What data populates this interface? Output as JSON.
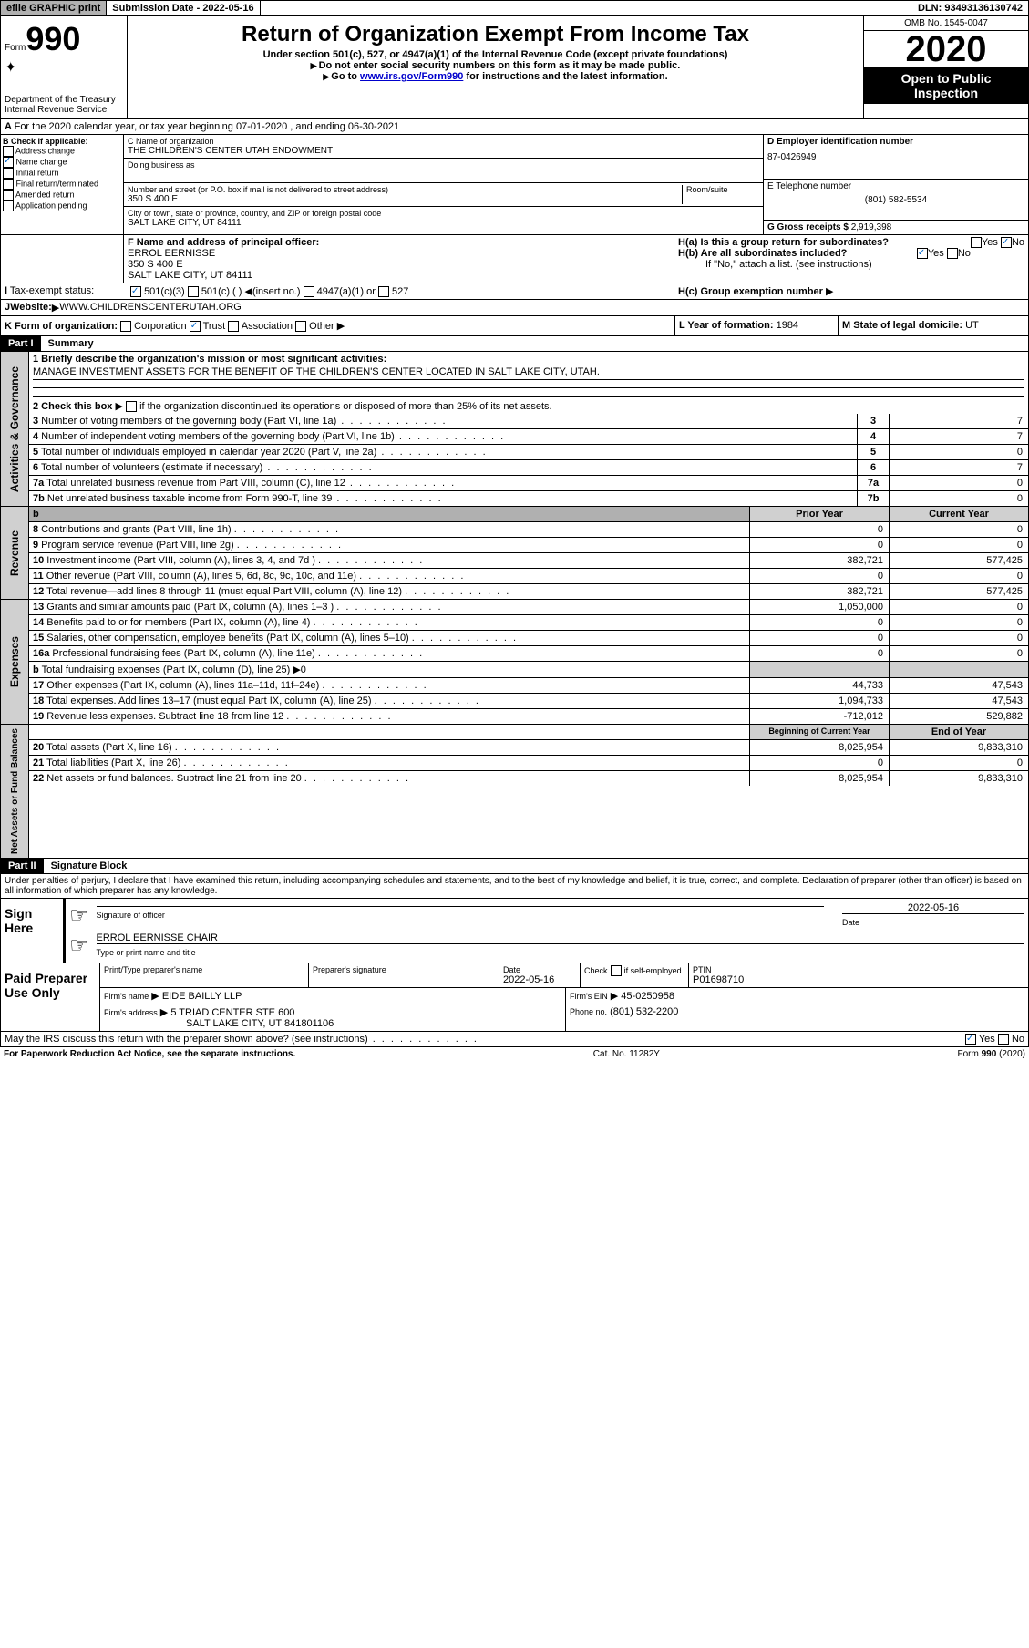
{
  "top": {
    "efile": "efile GRAPHIC print",
    "sub": "Submission Date - 2022-05-16",
    "dln": "DLN: 93493136130742"
  },
  "hdr": {
    "form": "990",
    "formword": "Form",
    "dept": "Department of the Treasury\nInternal Revenue Service",
    "title": "Return of Organization Exempt From Income Tax",
    "sub1": "Under section 501(c), 527, or 4947(a)(1) of the Internal Revenue Code (except private foundations)",
    "sub2": "Do not enter social security numbers on this form as it may be made public.",
    "sub3": "Go to",
    "link": "www.irs.gov/Form990",
    "sub3b": "for instructions and the latest information.",
    "omb": "OMB No. 1545-0047",
    "year": "2020",
    "pub": "Open to Public Inspection"
  },
  "a": {
    "txt": "For the 2020 calendar year, or tax year beginning 07-01-2020      , and ending 06-30-2021"
  },
  "b": {
    "lbl": "B Check if applicable:",
    "opts": [
      "Address change",
      "Name change",
      "Initial return",
      "Final return/terminated",
      "Amended return",
      "Application pending"
    ],
    "checked": [
      1
    ]
  },
  "c": {
    "lbl": "C Name of organization",
    "name": "THE CHILDREN'S CENTER UTAH ENDOWMENT",
    "dba": "Doing business as",
    "addr_lbl": "Number and street (or P.O. box if mail is not delivered to street address)",
    "addr": "350 S 400 E",
    "room": "Room/suite",
    "city_lbl": "City or town, state or province, country, and ZIP or foreign postal code",
    "city": "SALT LAKE CITY, UT  84111"
  },
  "d": {
    "lbl": "D Employer identification number",
    "ein": "87-0426949"
  },
  "e": {
    "lbl": "E Telephone number",
    "tel": "(801) 582-5534"
  },
  "g": {
    "lbl": "G Gross receipts $",
    "val": "2,919,398"
  },
  "f": {
    "lbl": "F  Name and address of principal officer:",
    "name": "ERROL EERNISSE",
    "a1": "350 S 400 E",
    "a2": "SALT LAKE CITY, UT  84111"
  },
  "h": {
    "a": "H(a)  Is this a group return for subordinates?",
    "b": "H(b)  Are all subordinates included?",
    "bnote": "If \"No,\" attach a list. (see instructions)",
    "c": "H(c)  Group exemption number",
    "yes": "Yes",
    "no": "No"
  },
  "i": {
    "lbl": "Tax-exempt status:",
    "o1": "501(c)(3)",
    "o2": "501(c) (  )",
    "ins": "(insert no.)",
    "o3": "4947(a)(1) or",
    "o4": "527"
  },
  "j": {
    "lbl": "Website:",
    "val": "WWW.CHILDRENSCENTERUTAH.ORG"
  },
  "k": {
    "lbl": "K Form of organization:",
    "c": "Corporation",
    "t": "Trust",
    "a": "Association",
    "o": "Other"
  },
  "l": {
    "lbl": "L Year of formation:",
    "val": "1984"
  },
  "m": {
    "lbl": "M State of legal domicile:",
    "val": "UT"
  },
  "p1": {
    "title": "Part I",
    "sub": "Summary",
    "side": "Activities & Governance",
    "q1": "1   Briefly describe the organization's mission or most significant activities:",
    "mission": "MANAGE INVESTMENT ASSETS FOR THE BENEFIT OF THE CHILDREN'S CENTER LOCATED IN SALT LAKE CITY, UTAH.",
    "q2": "2    Check this box",
    "q2b": "if the organization discontinued its operations or disposed of more than 25% of its net assets.",
    "rows": [
      {
        "n": "3",
        "d": "Number of voting members of the governing body (Part VI, line 1a)",
        "v": "7"
      },
      {
        "n": "4",
        "d": "Number of independent voting members of the governing body (Part VI, line 1b)",
        "v": "7"
      },
      {
        "n": "5",
        "d": "Total number of individuals employed in calendar year 2020 (Part V, line 2a)",
        "v": "0"
      },
      {
        "n": "6",
        "d": "Total number of volunteers (estimate if necessary)",
        "v": "7"
      },
      {
        "n": "7a",
        "d": "Total unrelated business revenue from Part VIII, column (C), line 12",
        "v": "0"
      },
      {
        "n": "7b",
        "d": "Net unrelated business taxable income from Form 990-T, line 39",
        "v": "0"
      }
    ]
  },
  "rev": {
    "side": "Revenue",
    "h1": "Prior Year",
    "h2": "Current Year",
    "rows": [
      {
        "n": "8",
        "d": "Contributions and grants (Part VIII, line 1h)",
        "p": "0",
        "c": "0"
      },
      {
        "n": "9",
        "d": "Program service revenue (Part VIII, line 2g)",
        "p": "0",
        "c": "0"
      },
      {
        "n": "10",
        "d": "Investment income (Part VIII, column (A), lines 3, 4, and 7d )",
        "p": "382,721",
        "c": "577,425"
      },
      {
        "n": "11",
        "d": "Other revenue (Part VIII, column (A), lines 5, 6d, 8c, 9c, 10c, and 11e)",
        "p": "0",
        "c": "0"
      },
      {
        "n": "12",
        "d": "Total revenue—add lines 8 through 11 (must equal Part VIII, column (A), line 12)",
        "p": "382,721",
        "c": "577,425"
      }
    ]
  },
  "exp": {
    "side": "Expenses",
    "rows": [
      {
        "n": "13",
        "d": "Grants and similar amounts paid (Part IX, column (A), lines 1–3 )",
        "p": "1,050,000",
        "c": "0"
      },
      {
        "n": "14",
        "d": "Benefits paid to or for members (Part IX, column (A), line 4)",
        "p": "0",
        "c": "0"
      },
      {
        "n": "15",
        "d": "Salaries, other compensation, employee benefits (Part IX, column (A), lines 5–10)",
        "p": "0",
        "c": "0"
      },
      {
        "n": "16a",
        "d": "Professional fundraising fees (Part IX, column (A), line 11e)",
        "p": "0",
        "c": "0"
      },
      {
        "n": "b",
        "d": "Total fundraising expenses (Part IX, column (D), line 25) ▶0",
        "p": "",
        "c": "",
        "grey": true
      },
      {
        "n": "17",
        "d": "Other expenses (Part IX, column (A), lines 11a–11d, 11f–24e)",
        "p": "44,733",
        "c": "47,543"
      },
      {
        "n": "18",
        "d": "Total expenses. Add lines 13–17 (must equal Part IX, column (A), line 25)",
        "p": "1,094,733",
        "c": "47,543"
      },
      {
        "n": "19",
        "d": "Revenue less expenses. Subtract line 18 from line 12",
        "p": "-712,012",
        "c": "529,882"
      }
    ]
  },
  "na": {
    "side": "Net Assets or Fund Balances",
    "h1": "Beginning of Current Year",
    "h2": "End of Year",
    "rows": [
      {
        "n": "20",
        "d": "Total assets (Part X, line 16)",
        "p": "8,025,954",
        "c": "9,833,310"
      },
      {
        "n": "21",
        "d": "Total liabilities (Part X, line 26)",
        "p": "0",
        "c": "0"
      },
      {
        "n": "22",
        "d": "Net assets or fund balances. Subtract line 21 from line 20",
        "p": "8,025,954",
        "c": "9,833,310"
      }
    ]
  },
  "p2": {
    "title": "Part II",
    "sub": "Signature Block",
    "decl": "Under penalties of perjury, I declare that I have examined this return, including accompanying schedules and statements, and to the best of my knowledge and belief, it is true, correct, and complete. Declaration of preparer (other than officer) is based on all information of which preparer has any knowledge."
  },
  "sign": {
    "lbl": "Sign Here",
    "sig": "Signature of officer",
    "date": "Date",
    "dv": "2022-05-16",
    "name": "ERROL EERNISSE CHAIR",
    "name_lbl": "Type or print name and title"
  },
  "prep": {
    "lbl": "Paid Preparer Use Only",
    "pn": "Print/Type preparer's name",
    "ps": "Preparer's signature",
    "dt": "Date",
    "dtv": "2022-05-16",
    "chk": "Check",
    "chkb": "if self-employed",
    "ptin": "PTIN",
    "ptinv": "P01698710",
    "fn": "Firm's name",
    "fnv": "EIDE BAILLY LLP",
    "fe": "Firm's EIN",
    "fev": "45-0250958",
    "fa": "Firm's address",
    "fav1": "5 TRIAD CENTER STE 600",
    "fav2": "SALT LAKE CITY, UT  841801106",
    "ph": "Phone no.",
    "phv": "(801) 532-2200"
  },
  "irs": {
    "q": "May the IRS discuss this return with the preparer shown above? (see instructions)",
    "y": "Yes",
    "n": "No"
  },
  "ft": {
    "l": "For Paperwork Reduction Act Notice, see the separate instructions.",
    "c": "Cat. No. 11282Y",
    "r": "Form 990 (2020)"
  }
}
